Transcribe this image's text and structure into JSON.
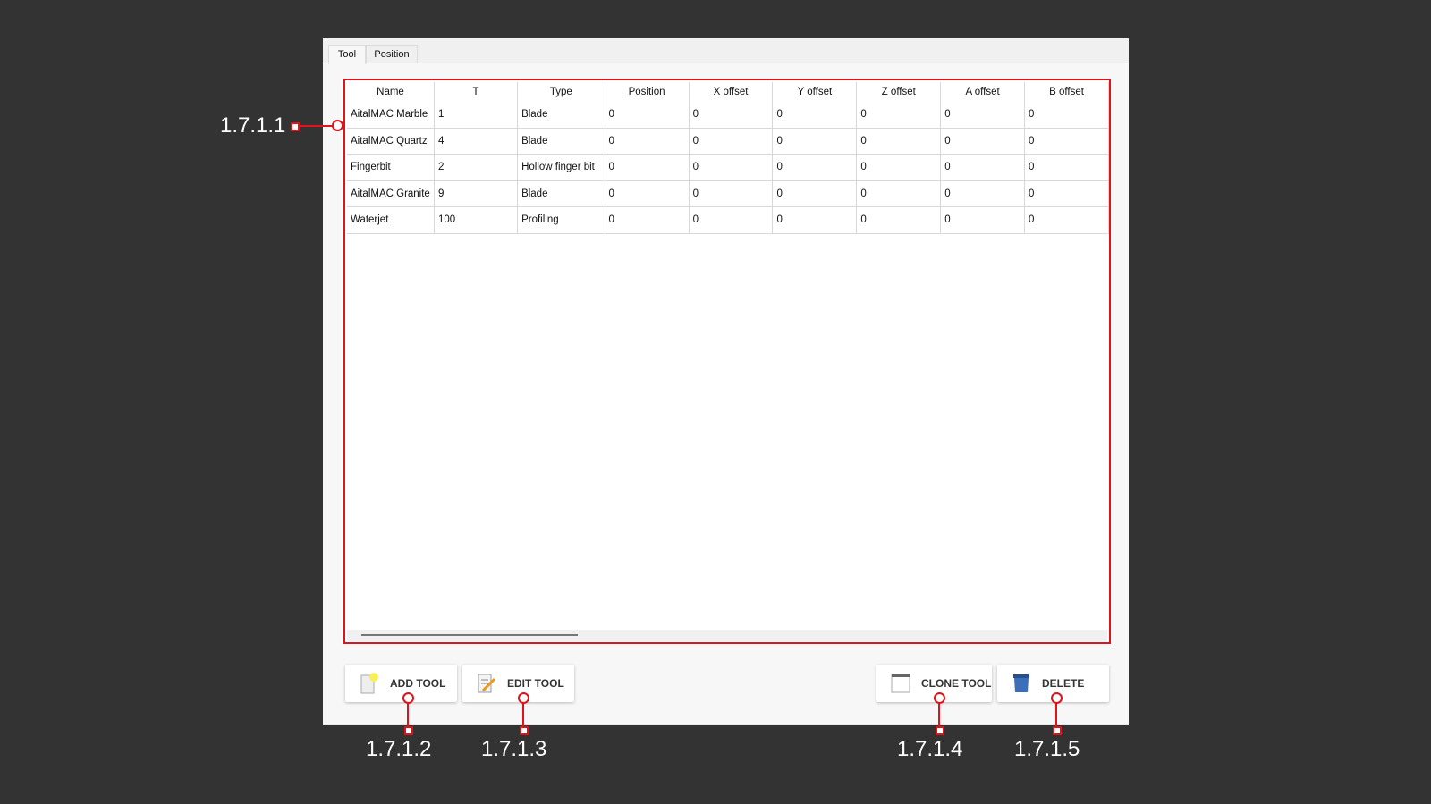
{
  "tabs": [
    {
      "label": "Tool",
      "active": true
    },
    {
      "label": "Position",
      "active": false
    }
  ],
  "table": {
    "columns": [
      "Name",
      "T",
      "Type",
      "Position",
      "X offset",
      "Y offset",
      "Z offset",
      "A offset",
      "B offset"
    ],
    "rows": [
      [
        "AitalMAC Marble",
        "1",
        "Blade",
        "0",
        "0",
        "0",
        "0",
        "0",
        "0"
      ],
      [
        "AitalMAC Quartz",
        "4",
        "Blade",
        "0",
        "0",
        "0",
        "0",
        "0",
        "0"
      ],
      [
        "Fingerbit",
        "2",
        "Hollow finger bit",
        "0",
        "0",
        "0",
        "0",
        "0",
        "0"
      ],
      [
        "AitalMAC Granite",
        "9",
        "Blade",
        "0",
        "0",
        "0",
        "0",
        "0",
        "0"
      ],
      [
        "Waterjet",
        "100",
        "Profiling",
        "0",
        "0",
        "0",
        "0",
        "0",
        "0"
      ]
    ]
  },
  "buttons": {
    "add": {
      "label": "ADD TOOL",
      "icon": "new-document-star-icon"
    },
    "edit": {
      "label": "EDIT TOOL",
      "icon": "document-pencil-icon"
    },
    "clone": {
      "label": "CLONE TOOL",
      "icon": "window-icon"
    },
    "delete": {
      "label": "DELETE",
      "icon": "trash-bin-icon"
    }
  },
  "annotations": [
    "1.7.1.1",
    "1.7.1.2",
    "1.7.1.3",
    "1.7.1.4",
    "1.7.1.5"
  ],
  "colors": {
    "annotation": "#e0121a",
    "background": "#333333"
  }
}
